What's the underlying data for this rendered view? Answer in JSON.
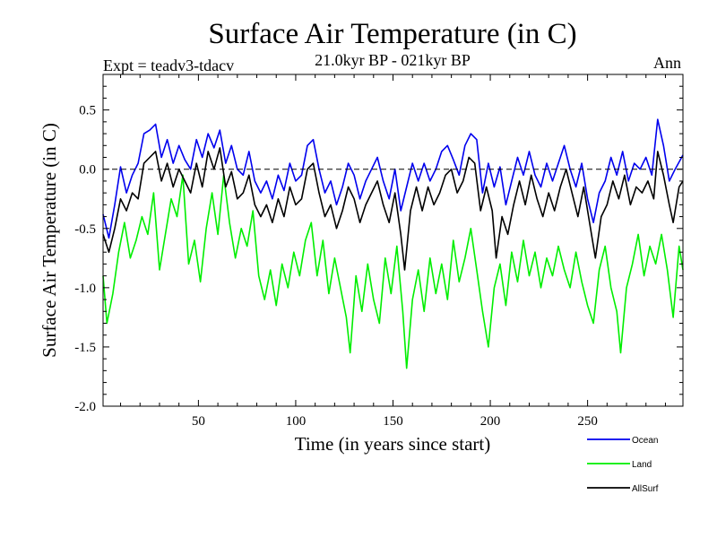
{
  "chart_data": {
    "type": "line",
    "title": "Surface Air Temperature (in C)",
    "subtitle": "21.0kyr BP - 021kyr BP",
    "top_left_label": "Expt = teadv3-tdacv",
    "top_right_label": "Ann",
    "xlabel": "Time (in years since start)",
    "ylabel": "Surface Air Temperature (in C)",
    "xlim": [
      1,
      299
    ],
    "ylim": [
      -2.0,
      0.8
    ],
    "x_ticks": [
      50,
      100,
      150,
      200,
      250
    ],
    "y_ticks": [
      0.5,
      0.0,
      -0.5,
      -1.0,
      -1.5,
      -2.0
    ],
    "x_tick_labels": [
      "50",
      "100",
      "150",
      "200",
      "250"
    ],
    "y_tick_labels": [
      "0.5",
      "0.0",
      "-0.5",
      "-1.0",
      "-1.5",
      "-2.0"
    ],
    "reference_line": {
      "y": 0.0,
      "style": "dashed"
    },
    "series": [
      {
        "name": "Ocean",
        "color": "#0000ee",
        "points": [
          [
            1,
            -0.38
          ],
          [
            4,
            -0.58
          ],
          [
            7,
            -0.3
          ],
          [
            10,
            0.02
          ],
          [
            13,
            -0.2
          ],
          [
            16,
            -0.05
          ],
          [
            19,
            0.05
          ],
          [
            22,
            0.3
          ],
          [
            25,
            0.33
          ],
          [
            28,
            0.38
          ],
          [
            31,
            0.1
          ],
          [
            34,
            0.25
          ],
          [
            37,
            0.05
          ],
          [
            40,
            0.2
          ],
          [
            43,
            0.08
          ],
          [
            46,
            0.0
          ],
          [
            49,
            0.25
          ],
          [
            52,
            0.1
          ],
          [
            55,
            0.3
          ],
          [
            58,
            0.18
          ],
          [
            61,
            0.33
          ],
          [
            64,
            0.05
          ],
          [
            67,
            0.2
          ],
          [
            70,
            0.0
          ],
          [
            73,
            -0.05
          ],
          [
            76,
            0.15
          ],
          [
            79,
            -0.1
          ],
          [
            82,
            -0.2
          ],
          [
            85,
            -0.1
          ],
          [
            88,
            -0.25
          ],
          [
            91,
            -0.05
          ],
          [
            94,
            -0.18
          ],
          [
            97,
            0.05
          ],
          [
            100,
            -0.1
          ],
          [
            103,
            -0.05
          ],
          [
            106,
            0.2
          ],
          [
            109,
            0.25
          ],
          [
            112,
            0.0
          ],
          [
            115,
            -0.2
          ],
          [
            118,
            -0.1
          ],
          [
            121,
            -0.3
          ],
          [
            124,
            -0.15
          ],
          [
            127,
            0.05
          ],
          [
            130,
            -0.05
          ],
          [
            133,
            -0.25
          ],
          [
            136,
            -0.1
          ],
          [
            139,
            0.0
          ],
          [
            142,
            0.1
          ],
          [
            145,
            -0.1
          ],
          [
            148,
            -0.25
          ],
          [
            151,
            0.0
          ],
          [
            154,
            -0.35
          ],
          [
            157,
            -0.15
          ],
          [
            160,
            0.05
          ],
          [
            163,
            -0.1
          ],
          [
            166,
            0.05
          ],
          [
            169,
            -0.1
          ],
          [
            172,
            0.0
          ],
          [
            175,
            0.15
          ],
          [
            178,
            0.2
          ],
          [
            181,
            0.08
          ],
          [
            184,
            -0.05
          ],
          [
            187,
            0.2
          ],
          [
            190,
            0.3
          ],
          [
            193,
            0.25
          ],
          [
            196,
            -0.2
          ],
          [
            199,
            0.05
          ],
          [
            202,
            -0.15
          ],
          [
            205,
            0.02
          ],
          [
            208,
            -0.3
          ],
          [
            211,
            -0.1
          ],
          [
            214,
            0.1
          ],
          [
            217,
            -0.05
          ],
          [
            220,
            0.15
          ],
          [
            223,
            -0.05
          ],
          [
            226,
            -0.15
          ],
          [
            229,
            0.05
          ],
          [
            232,
            -0.1
          ],
          [
            235,
            0.05
          ],
          [
            238,
            0.2
          ],
          [
            241,
            0.0
          ],
          [
            244,
            -0.15
          ],
          [
            247,
            0.05
          ],
          [
            250,
            -0.25
          ],
          [
            253,
            -0.45
          ],
          [
            256,
            -0.2
          ],
          [
            259,
            -0.1
          ],
          [
            262,
            0.1
          ],
          [
            265,
            -0.05
          ],
          [
            268,
            0.15
          ],
          [
            271,
            -0.1
          ],
          [
            274,
            0.05
          ],
          [
            277,
            0.0
          ],
          [
            280,
            0.1
          ],
          [
            283,
            -0.05
          ],
          [
            286,
            0.42
          ],
          [
            289,
            0.2
          ],
          [
            292,
            -0.1
          ],
          [
            295,
            0.0
          ],
          [
            299,
            0.12
          ]
        ]
      },
      {
        "name": "Land",
        "color": "#00ee00",
        "points": [
          [
            1,
            -0.9
          ],
          [
            3,
            -1.3
          ],
          [
            6,
            -1.05
          ],
          [
            9,
            -0.7
          ],
          [
            12,
            -0.45
          ],
          [
            15,
            -0.75
          ],
          [
            18,
            -0.6
          ],
          [
            21,
            -0.4
          ],
          [
            24,
            -0.55
          ],
          [
            27,
            -0.2
          ],
          [
            30,
            -0.85
          ],
          [
            33,
            -0.55
          ],
          [
            36,
            -0.25
          ],
          [
            39,
            -0.4
          ],
          [
            42,
            -0.05
          ],
          [
            45,
            -0.8
          ],
          [
            48,
            -0.6
          ],
          [
            51,
            -0.95
          ],
          [
            54,
            -0.5
          ],
          [
            57,
            -0.2
          ],
          [
            60,
            -0.55
          ],
          [
            63,
            -0.05
          ],
          [
            66,
            -0.45
          ],
          [
            69,
            -0.75
          ],
          [
            72,
            -0.5
          ],
          [
            75,
            -0.65
          ],
          [
            78,
            -0.35
          ],
          [
            81,
            -0.9
          ],
          [
            84,
            -1.1
          ],
          [
            87,
            -0.85
          ],
          [
            90,
            -1.15
          ],
          [
            93,
            -0.8
          ],
          [
            96,
            -1.0
          ],
          [
            99,
            -0.7
          ],
          [
            102,
            -0.9
          ],
          [
            105,
            -0.6
          ],
          [
            108,
            -0.45
          ],
          [
            111,
            -0.9
          ],
          [
            114,
            -0.6
          ],
          [
            117,
            -1.05
          ],
          [
            120,
            -0.75
          ],
          [
            123,
            -1.0
          ],
          [
            126,
            -1.25
          ],
          [
            128,
            -1.55
          ],
          [
            131,
            -0.9
          ],
          [
            134,
            -1.2
          ],
          [
            137,
            -0.8
          ],
          [
            140,
            -1.1
          ],
          [
            143,
            -1.3
          ],
          [
            146,
            -0.75
          ],
          [
            149,
            -1.05
          ],
          [
            152,
            -0.65
          ],
          [
            155,
            -1.2
          ],
          [
            157,
            -1.68
          ],
          [
            160,
            -1.1
          ],
          [
            163,
            -0.85
          ],
          [
            166,
            -1.2
          ],
          [
            169,
            -0.75
          ],
          [
            172,
            -1.05
          ],
          [
            175,
            -0.8
          ],
          [
            178,
            -1.1
          ],
          [
            181,
            -0.6
          ],
          [
            184,
            -0.95
          ],
          [
            187,
            -0.75
          ],
          [
            190,
            -0.5
          ],
          [
            193,
            -0.85
          ],
          [
            196,
            -1.2
          ],
          [
            199,
            -1.5
          ],
          [
            202,
            -1.0
          ],
          [
            205,
            -0.8
          ],
          [
            208,
            -1.15
          ],
          [
            211,
            -0.7
          ],
          [
            214,
            -0.95
          ],
          [
            217,
            -0.6
          ],
          [
            220,
            -0.9
          ],
          [
            223,
            -0.7
          ],
          [
            226,
            -1.0
          ],
          [
            229,
            -0.75
          ],
          [
            232,
            -0.9
          ],
          [
            235,
            -0.65
          ],
          [
            238,
            -0.85
          ],
          [
            241,
            -1.0
          ],
          [
            244,
            -0.7
          ],
          [
            247,
            -0.95
          ],
          [
            250,
            -1.15
          ],
          [
            253,
            -1.3
          ],
          [
            256,
            -0.85
          ],
          [
            259,
            -0.65
          ],
          [
            262,
            -1.0
          ],
          [
            265,
            -1.2
          ],
          [
            267,
            -1.55
          ],
          [
            270,
            -1.0
          ],
          [
            273,
            -0.8
          ],
          [
            276,
            -0.55
          ],
          [
            279,
            -0.9
          ],
          [
            282,
            -0.65
          ],
          [
            285,
            -0.8
          ],
          [
            288,
            -0.55
          ],
          [
            291,
            -0.85
          ],
          [
            294,
            -1.25
          ],
          [
            297,
            -0.65
          ],
          [
            299,
            -0.85
          ]
        ]
      },
      {
        "name": "AllSurf",
        "color": "#000000",
        "points": [
          [
            1,
            -0.55
          ],
          [
            4,
            -0.7
          ],
          [
            7,
            -0.5
          ],
          [
            10,
            -0.25
          ],
          [
            13,
            -0.35
          ],
          [
            16,
            -0.2
          ],
          [
            19,
            -0.25
          ],
          [
            22,
            0.05
          ],
          [
            25,
            0.1
          ],
          [
            28,
            0.15
          ],
          [
            31,
            -0.1
          ],
          [
            34,
            0.05
          ],
          [
            37,
            -0.15
          ],
          [
            40,
            0.0
          ],
          [
            43,
            -0.1
          ],
          [
            46,
            -0.2
          ],
          [
            49,
            0.05
          ],
          [
            52,
            -0.15
          ],
          [
            55,
            0.15
          ],
          [
            58,
            0.0
          ],
          [
            61,
            0.18
          ],
          [
            64,
            -0.15
          ],
          [
            67,
            -0.02
          ],
          [
            70,
            -0.25
          ],
          [
            73,
            -0.2
          ],
          [
            76,
            -0.05
          ],
          [
            79,
            -0.3
          ],
          [
            82,
            -0.4
          ],
          [
            85,
            -0.3
          ],
          [
            88,
            -0.45
          ],
          [
            91,
            -0.25
          ],
          [
            94,
            -0.4
          ],
          [
            97,
            -0.15
          ],
          [
            100,
            -0.3
          ],
          [
            103,
            -0.25
          ],
          [
            106,
            0.0
          ],
          [
            109,
            0.05
          ],
          [
            112,
            -0.2
          ],
          [
            115,
            -0.4
          ],
          [
            118,
            -0.3
          ],
          [
            121,
            -0.5
          ],
          [
            124,
            -0.35
          ],
          [
            127,
            -0.15
          ],
          [
            130,
            -0.25
          ],
          [
            133,
            -0.45
          ],
          [
            136,
            -0.3
          ],
          [
            139,
            -0.2
          ],
          [
            142,
            -0.1
          ],
          [
            145,
            -0.3
          ],
          [
            148,
            -0.45
          ],
          [
            151,
            -0.2
          ],
          [
            154,
            -0.55
          ],
          [
            156,
            -0.85
          ],
          [
            159,
            -0.35
          ],
          [
            162,
            -0.15
          ],
          [
            165,
            -0.35
          ],
          [
            168,
            -0.15
          ],
          [
            171,
            -0.3
          ],
          [
            174,
            -0.2
          ],
          [
            177,
            -0.05
          ],
          [
            180,
            0.0
          ],
          [
            183,
            -0.2
          ],
          [
            186,
            -0.1
          ],
          [
            189,
            0.1
          ],
          [
            192,
            0.05
          ],
          [
            195,
            -0.35
          ],
          [
            198,
            -0.15
          ],
          [
            201,
            -0.35
          ],
          [
            203,
            -0.75
          ],
          [
            206,
            -0.4
          ],
          [
            209,
            -0.55
          ],
          [
            212,
            -0.3
          ],
          [
            215,
            -0.1
          ],
          [
            218,
            -0.3
          ],
          [
            221,
            -0.05
          ],
          [
            224,
            -0.25
          ],
          [
            227,
            -0.4
          ],
          [
            230,
            -0.2
          ],
          [
            233,
            -0.35
          ],
          [
            236,
            -0.15
          ],
          [
            239,
            0.0
          ],
          [
            242,
            -0.2
          ],
          [
            245,
            -0.4
          ],
          [
            248,
            -0.15
          ],
          [
            251,
            -0.45
          ],
          [
            254,
            -0.75
          ],
          [
            257,
            -0.4
          ],
          [
            260,
            -0.3
          ],
          [
            263,
            -0.1
          ],
          [
            266,
            -0.25
          ],
          [
            269,
            -0.05
          ],
          [
            272,
            -0.3
          ],
          [
            275,
            -0.15
          ],
          [
            278,
            -0.2
          ],
          [
            281,
            -0.1
          ],
          [
            284,
            -0.25
          ],
          [
            286,
            0.15
          ],
          [
            289,
            -0.05
          ],
          [
            292,
            -0.3
          ],
          [
            294,
            -0.45
          ],
          [
            297,
            -0.15
          ],
          [
            299,
            -0.1
          ]
        ]
      }
    ],
    "legend": [
      "Ocean",
      "Land",
      "AllSurf"
    ],
    "legend_position": "bottom-right"
  }
}
